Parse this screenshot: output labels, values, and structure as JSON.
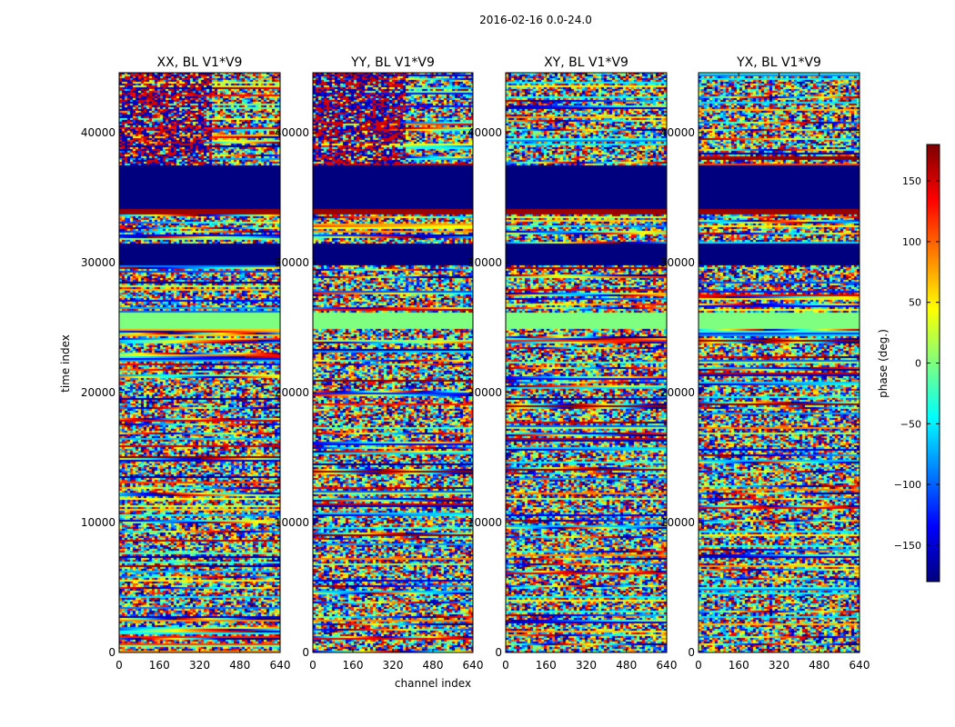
{
  "chart_data": {
    "type": "heatmap",
    "suptitle": "2016-02-16 0.0-24.0",
    "xlabel": "channel index",
    "ylabel": "time index",
    "xlim": [
      0,
      640
    ],
    "ylim": [
      0,
      44600
    ],
    "xticks": [
      "0",
      "160",
      "320",
      "480",
      "640"
    ],
    "yticks": [
      "0",
      "10000",
      "20000",
      "30000",
      "40000"
    ],
    "panels": [
      {
        "title": "XX, BL V1*V9"
      },
      {
        "title": "YY, BL V1*V9"
      },
      {
        "title": "XY, BL V1*V9"
      },
      {
        "title": "YX, BL V1*V9"
      }
    ],
    "bands": [
      {
        "t_start": 34200,
        "t_end": 37600,
        "phase": -180
      },
      {
        "t_start": 33800,
        "t_end": 34200,
        "phase": 170
      },
      {
        "t_start": 29900,
        "t_end": 31500,
        "phase": -180
      },
      {
        "t_start": 24900,
        "t_end": 26200,
        "phase": 0
      }
    ],
    "colorbar": {
      "label": "phase (deg.)",
      "colormap": "jet",
      "range": [
        -180,
        180
      ],
      "ticks": [
        "150",
        "100",
        "50",
        "0",
        "−50",
        "−100",
        "−150"
      ],
      "tick_values": [
        150,
        100,
        50,
        0,
        -50,
        -100,
        -150
      ]
    }
  }
}
